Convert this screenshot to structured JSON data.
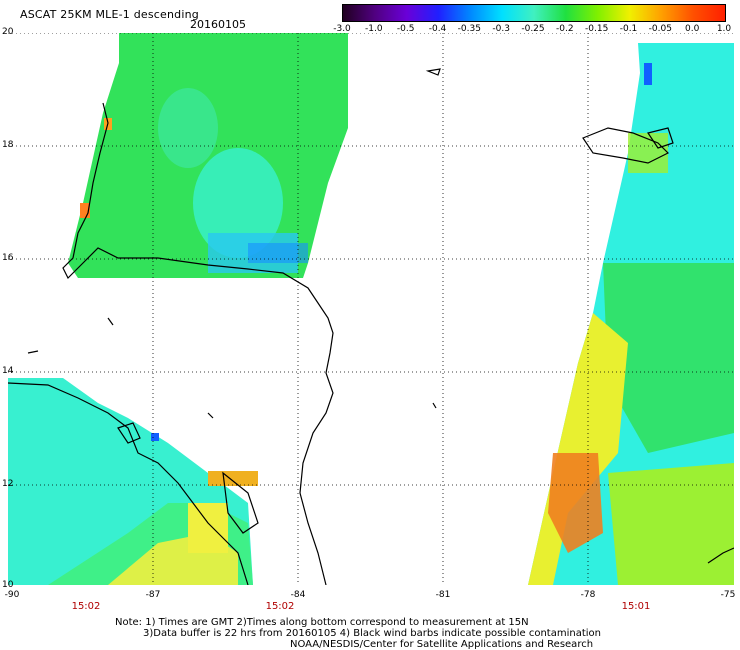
{
  "header": {
    "title": "ASCAT 25KM MLE-1 descending",
    "date": "20160105"
  },
  "colorbar": {
    "ticks": [
      "-3.0",
      "-1.0",
      "-0.5",
      "-0.4",
      "-0.35",
      "-0.3",
      "-0.25",
      "-0.2",
      "-0.15",
      "-0.1",
      "-0.05",
      "0.0",
      "1.0"
    ],
    "colors": [
      "#200020",
      "#500080",
      "#6a00d8",
      "#2020ff",
      "#0088ff",
      "#00e0ff",
      "#40f0c0",
      "#20e040",
      "#80f000",
      "#f0f000",
      "#ffa000",
      "#ff5000",
      "#ff2000"
    ]
  },
  "map": {
    "lat_labels": [
      "20",
      "18",
      "16",
      "14",
      "12",
      "10"
    ],
    "lon_labels": [
      "-90",
      "-87",
      "-84",
      "-81",
      "-78",
      "-75"
    ],
    "times": [
      "15:02",
      "15:02",
      "15:01"
    ]
  },
  "notes": {
    "line1": "Note: 1) Times are GMT 2)Times along bottom correspond to measurement at 15N",
    "line2": "3)Data buffer is 22 hrs from 20160105 4) Black wind barbs indicate possible contamination",
    "line3": "NOAA/NESDIS/Center for Satellite Applications and Research"
  }
}
